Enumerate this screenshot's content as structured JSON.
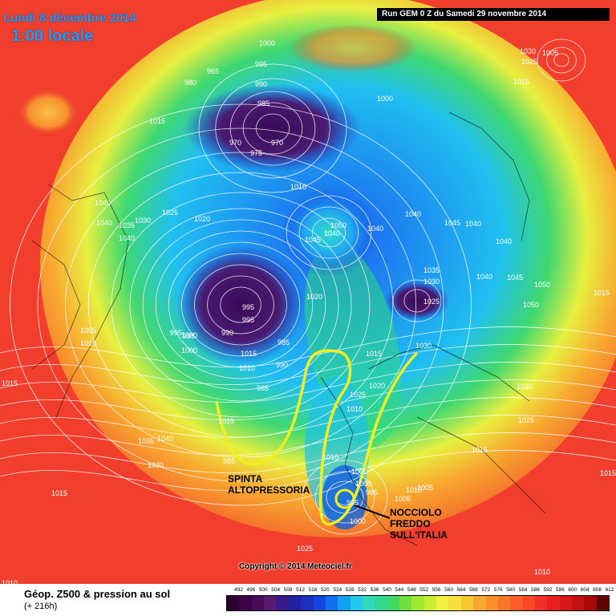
{
  "title": {
    "date": "Lundi 8 décembre 2014",
    "time": "1:00 locale"
  },
  "run_info": "Run GEM 0 Z du Samedi 29 novembre 2014",
  "copyright": "Copyright © 2014 Meteociel.fr",
  "footer": {
    "title": "Géop. Z500 & pression au sol",
    "subtitle": "(+ 216h)"
  },
  "annotations": {
    "spinta_line1": "SPINTA",
    "spinta_line2": "ALTOPRESSORIA",
    "nocciolo_line1": "NOCCIOLO",
    "nocciolo_line2": "FREDDO",
    "nocciolo_line3": "SULL'ITALIA"
  },
  "isobar_labels": [
    "1000",
    "995",
    "990",
    "985",
    "980",
    "965",
    "970",
    "975",
    "970",
    "1000",
    "1010",
    "1015",
    "1025",
    "1020",
    "1040",
    "1040",
    "1035",
    "1030",
    "1040",
    "1050",
    "1045",
    "1040",
    "1040",
    "1040",
    "1045",
    "1040",
    "1035",
    "1030",
    "1040",
    "1045",
    "1050",
    "1025",
    "1015",
    "1050",
    "1020",
    "1005",
    "1010",
    "995",
    "995",
    "1000",
    "990",
    "995",
    "995",
    "1015",
    "1010",
    "1000",
    "985",
    "985",
    "990",
    "1015",
    "1035",
    "1040",
    "1030",
    "1015",
    "1040",
    "1010",
    "1020",
    "1015",
    "1030",
    "1025",
    "1010",
    "1000",
    "1005",
    "1000",
    "995",
    "995",
    "1000",
    "1005",
    "1010",
    "1030",
    "1025",
    "1015",
    "1025",
    "1015",
    "1010",
    "1015",
    "1010",
    "1030",
    "1015",
    "1025",
    "1005",
    "985",
    "1015"
  ],
  "legend": {
    "values": [
      "492",
      "496",
      "500",
      "504",
      "508",
      "512",
      "516",
      "520",
      "524",
      "528",
      "532",
      "536",
      "540",
      "544",
      "548",
      "552",
      "556",
      "560",
      "564",
      "568",
      "572",
      "576",
      "580",
      "584",
      "588",
      "592",
      "596",
      "600",
      "604",
      "608",
      "612"
    ],
    "colors": [
      "#2a0030",
      "#3c0048",
      "#4a0a5a",
      "#5a1a70",
      "#3a1a8a",
      "#2020a0",
      "#1a30c0",
      "#1048e0",
      "#1070f0",
      "#10a0f0",
      "#20c8f0",
      "#30d8c0",
      "#30d890",
      "#40d860",
      "#70e040",
      "#a0e830",
      "#c8f030",
      "#f0f040",
      "#f8e040",
      "#f8c830",
      "#f8a830",
      "#f89028",
      "#f87828",
      "#f86028",
      "#f84828",
      "#f03028",
      "#e82020",
      "#d81818",
      "#c01010",
      "#a80808",
      "#600000"
    ]
  }
}
